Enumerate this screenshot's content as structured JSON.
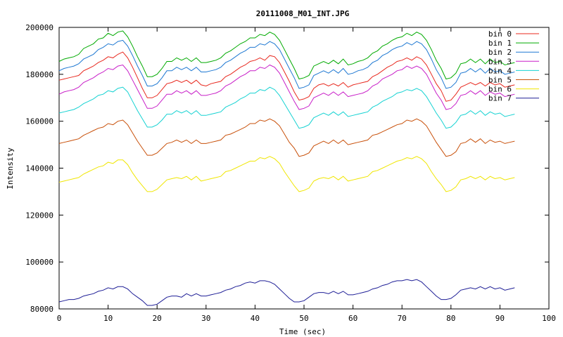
{
  "chart_data": {
    "type": "line",
    "title": "20111008_M01_INT.JPG",
    "xlabel": "Time (sec)",
    "ylabel": "Intensity",
    "xlim": [
      0,
      100
    ],
    "ylim": [
      80000,
      200000
    ],
    "xticks": [
      0,
      10,
      20,
      30,
      40,
      50,
      60,
      70,
      80,
      90,
      100
    ],
    "yticks": [
      80000,
      100000,
      120000,
      140000,
      160000,
      180000,
      200000
    ],
    "grid": false,
    "legend_position": "top-right",
    "x": [
      0,
      1,
      2,
      3,
      4,
      5,
      6,
      7,
      8,
      9,
      10,
      11,
      12,
      13,
      14,
      15,
      16,
      17,
      18,
      19,
      20,
      21,
      22,
      23,
      24,
      25,
      26,
      27,
      28,
      29,
      30,
      31,
      32,
      33,
      34,
      35,
      36,
      37,
      38,
      39,
      40,
      41,
      42,
      43,
      44,
      45,
      46,
      47,
      48,
      49,
      50,
      51,
      52,
      53,
      54,
      55,
      56,
      57,
      58,
      59,
      60,
      61,
      62,
      63,
      64,
      65,
      66,
      67,
      68,
      69,
      70,
      71,
      72,
      73,
      74,
      75,
      76,
      77,
      78,
      79,
      80,
      81,
      82,
      83,
      84,
      85,
      86,
      87,
      88,
      89,
      90,
      91,
      92,
      93
    ],
    "series": [
      {
        "name": "bin 0",
        "color": "#e8281e",
        "values": [
          177500,
          178000,
          178500,
          179000,
          179500,
          181500,
          182500,
          183500,
          185000,
          186000,
          187500,
          187000,
          188500,
          189500,
          187000,
          183000,
          178500,
          174000,
          170000,
          170000,
          171000,
          173500,
          176000,
          176500,
          177500,
          176500,
          177500,
          176000,
          177500,
          175500,
          175000,
          176000,
          176500,
          177000,
          179000,
          180000,
          181500,
          183000,
          184000,
          185500,
          186000,
          187000,
          186000,
          188000,
          187500,
          185000,
          181000,
          177000,
          172500,
          169000,
          169500,
          170500,
          174000,
          175500,
          176000,
          175000,
          176000,
          175000,
          176500,
          174500,
          175500,
          176000,
          176500,
          177000,
          179000,
          180000,
          181500,
          183000,
          184000,
          185500,
          186000,
          187000,
          186000,
          187500,
          186500,
          184000,
          180000,
          176000,
          173000,
          168500,
          169000,
          171500,
          174500,
          175500,
          176500,
          175500,
          176500,
          175000,
          176500,
          175500,
          176000,
          174500,
          175000,
          175500
        ]
      },
      {
        "name": "bin 1",
        "color": "#00aa00",
        "values": [
          185500,
          186500,
          187000,
          187500,
          188500,
          191000,
          192000,
          193000,
          195000,
          195500,
          197500,
          196500,
          198000,
          198500,
          196000,
          192000,
          187500,
          183500,
          179000,
          179000,
          180000,
          182500,
          185500,
          185500,
          187000,
          186000,
          187000,
          185500,
          187000,
          185000,
          185000,
          185500,
          186000,
          187000,
          189000,
          190000,
          191500,
          193000,
          194000,
          195500,
          195500,
          197000,
          196500,
          198000,
          197000,
          194500,
          190500,
          186500,
          182500,
          178000,
          178500,
          179500,
          183500,
          184500,
          185500,
          184500,
          186000,
          184500,
          186500,
          184000,
          184500,
          185500,
          186000,
          187000,
          189000,
          190000,
          192000,
          193000,
          194500,
          195500,
          196000,
          197500,
          196500,
          198000,
          197000,
          194500,
          190500,
          186000,
          182500,
          178000,
          178500,
          180500,
          184500,
          185000,
          186500,
          185000,
          186500,
          184500,
          186500,
          185000,
          185500,
          184000,
          184500,
          185000
        ]
      },
      {
        "name": "bin 2",
        "color": "#1e78d2",
        "values": [
          181500,
          182500,
          183000,
          183500,
          184500,
          186500,
          187500,
          188500,
          190500,
          191500,
          193000,
          192500,
          194000,
          194500,
          192000,
          188000,
          183500,
          179500,
          175000,
          175000,
          176000,
          178500,
          181500,
          181500,
          183000,
          182000,
          183000,
          181500,
          183000,
          181000,
          181000,
          181500,
          182000,
          183000,
          185000,
          186000,
          187500,
          189000,
          190000,
          191500,
          191500,
          193000,
          192500,
          194000,
          193000,
          190500,
          186500,
          182500,
          178500,
          174000,
          174500,
          175500,
          179500,
          180500,
          181500,
          180500,
          182000,
          180500,
          182500,
          180000,
          180500,
          181500,
          182000,
          183000,
          185000,
          186000,
          188000,
          189000,
          190500,
          191500,
          192000,
          193500,
          192500,
          194000,
          193000,
          190500,
          186500,
          182000,
          178500,
          174000,
          174500,
          176500,
          180500,
          181000,
          182500,
          181000,
          182500,
          180500,
          182500,
          181000,
          181500,
          180000,
          180500,
          181000
        ]
      },
      {
        "name": "bin 3",
        "color": "#c81ec8",
        "values": [
          171500,
          172500,
          173000,
          173500,
          174500,
          176500,
          177500,
          178500,
          180000,
          181000,
          182500,
          182000,
          183500,
          184000,
          181500,
          177500,
          173500,
          169500,
          165500,
          165500,
          166500,
          169000,
          171500,
          171500,
          173000,
          172000,
          173000,
          171500,
          173000,
          171000,
          171000,
          171500,
          172000,
          173000,
          175000,
          176000,
          177500,
          179000,
          180000,
          181500,
          181500,
          183000,
          182500,
          184000,
          183000,
          180500,
          176500,
          172500,
          168500,
          165000,
          165500,
          166500,
          170000,
          171000,
          172000,
          171000,
          172500,
          171000,
          172500,
          170500,
          171000,
          171500,
          172000,
          173000,
          175000,
          176000,
          178000,
          179000,
          180000,
          181500,
          182000,
          183500,
          182500,
          183500,
          182500,
          180000,
          176000,
          172000,
          169000,
          165000,
          165500,
          167500,
          171000,
          171500,
          173000,
          171500,
          173000,
          171000,
          172500,
          171500,
          172000,
          170500,
          171000,
          171500
        ]
      },
      {
        "name": "bin 4",
        "color": "#14d2d2",
        "values": [
          163500,
          164000,
          164500,
          165000,
          166000,
          167500,
          168500,
          169500,
          171000,
          171500,
          173000,
          172500,
          174000,
          174500,
          172500,
          168500,
          164500,
          161000,
          157500,
          157500,
          158500,
          160500,
          163000,
          163000,
          164500,
          163500,
          164500,
          163000,
          164500,
          162500,
          162500,
          163000,
          163500,
          164000,
          166000,
          167000,
          168000,
          169500,
          170500,
          172000,
          172000,
          173500,
          173000,
          174500,
          173500,
          171000,
          167500,
          164000,
          160500,
          157000,
          157500,
          158500,
          161500,
          162500,
          163500,
          162500,
          164000,
          162500,
          164000,
          162000,
          162500,
          163000,
          163500,
          164000,
          166000,
          167000,
          168500,
          169500,
          170500,
          172000,
          172500,
          173500,
          173000,
          174000,
          173000,
          170500,
          167000,
          163500,
          160500,
          157000,
          157500,
          159500,
          162500,
          163000,
          164500,
          163000,
          164500,
          162500,
          164000,
          163000,
          163500,
          162000,
          162500,
          163000
        ]
      },
      {
        "name": "bin 5",
        "color": "#c8500a",
        "values": [
          150500,
          151000,
          151500,
          152000,
          152500,
          154000,
          155000,
          156000,
          157000,
          157500,
          159000,
          158500,
          160000,
          160500,
          158500,
          155000,
          151500,
          148500,
          145500,
          145500,
          146500,
          148500,
          150500,
          151000,
          152000,
          151000,
          152000,
          150500,
          152000,
          150500,
          150500,
          151000,
          151500,
          152000,
          154000,
          154500,
          155500,
          156500,
          157500,
          159000,
          159000,
          160500,
          160000,
          161000,
          160000,
          158000,
          154500,
          151000,
          148500,
          145000,
          145500,
          146500,
          149500,
          150500,
          151500,
          150500,
          152000,
          150500,
          152000,
          150000,
          150500,
          151000,
          151500,
          152000,
          154000,
          154500,
          155500,
          156500,
          157500,
          158500,
          159000,
          160500,
          160000,
          161000,
          160000,
          158000,
          154500,
          151000,
          148000,
          145000,
          145500,
          147000,
          150500,
          151000,
          152500,
          151000,
          152500,
          150500,
          152000,
          151000,
          151500,
          150500,
          151000,
          151500
        ]
      },
      {
        "name": "bin 6",
        "color": "#f0e600",
        "values": [
          134000,
          134500,
          135000,
          135500,
          136000,
          137500,
          138500,
          139500,
          140500,
          141000,
          142500,
          142000,
          143500,
          143500,
          141500,
          138000,
          135000,
          132500,
          130000,
          130000,
          131000,
          133000,
          135000,
          135500,
          136000,
          135500,
          136500,
          135000,
          136500,
          134500,
          135000,
          135500,
          136000,
          136500,
          138500,
          139000,
          140000,
          141000,
          142000,
          143000,
          143000,
          144500,
          144000,
          145000,
          144000,
          142000,
          138500,
          135500,
          132500,
          130000,
          130500,
          131500,
          134500,
          135500,
          136000,
          135500,
          136500,
          135000,
          136500,
          134500,
          135000,
          135500,
          136000,
          136500,
          138500,
          139000,
          140000,
          141000,
          142000,
          143000,
          143500,
          144500,
          144000,
          145000,
          144000,
          142000,
          138500,
          135500,
          133000,
          130000,
          130500,
          132000,
          135000,
          135500,
          136500,
          135500,
          136500,
          135000,
          136500,
          135500,
          136000,
          135000,
          135500,
          136000
        ]
      },
      {
        "name": "bin 7",
        "color": "#1e1e96",
        "values": [
          83000,
          83500,
          84000,
          84000,
          84500,
          85500,
          86000,
          86500,
          87500,
          88000,
          89000,
          88500,
          89500,
          89500,
          88500,
          86500,
          85000,
          83500,
          81500,
          81500,
          82000,
          83500,
          85000,
          85500,
          85500,
          85000,
          86500,
          85500,
          86500,
          85500,
          85500,
          86000,
          86500,
          87000,
          88000,
          88500,
          89500,
          90000,
          91000,
          91500,
          91000,
          92000,
          92000,
          91500,
          90500,
          88500,
          86500,
          84500,
          83000,
          83000,
          83500,
          85000,
          86500,
          87000,
          87000,
          86500,
          87500,
          86500,
          87500,
          86000,
          86000,
          86500,
          87000,
          87500,
          88500,
          89000,
          90000,
          90500,
          91500,
          92000,
          92000,
          92500,
          92000,
          92500,
          91500,
          89500,
          87500,
          85500,
          84000,
          84000,
          84500,
          86000,
          88000,
          88500,
          89000,
          88500,
          89500,
          88500,
          89500,
          88500,
          89000,
          88000,
          88500,
          89000
        ]
      }
    ]
  }
}
